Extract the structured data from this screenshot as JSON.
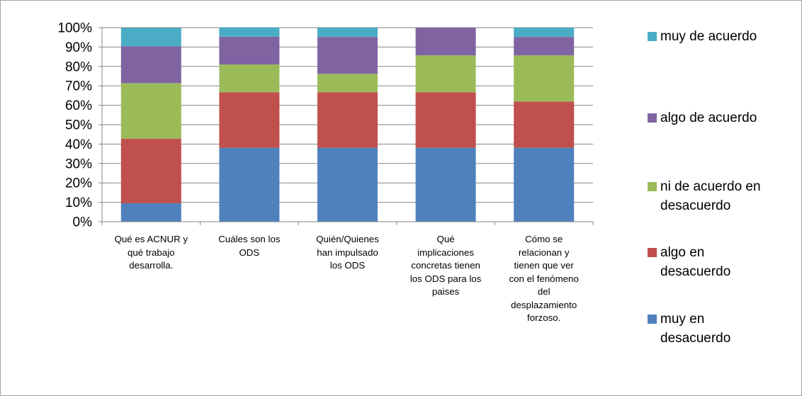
{
  "chart_data": {
    "type": "bar",
    "stacked": true,
    "percent_stacked": true,
    "categories": [
      "Qué es ACNUR y qué trabajo desarrolla.",
      "Cuáles son los ODS",
      "Quién/Quienes han impulsado los ODS",
      "Qué implicaciones concretas tienen los ODS para los paises",
      "Cómo se relacionan y tienen que ver con el fenómeno del desplazamiento forzoso."
    ],
    "series": [
      {
        "name": "muy en desacuerdo",
        "color": "#4f81bd",
        "values": [
          9.5,
          38.1,
          38.1,
          38.1,
          38.1
        ]
      },
      {
        "name": "algo en desacuerdo",
        "color": "#c0504d",
        "values": [
          33.3,
          28.6,
          28.6,
          28.6,
          23.8
        ]
      },
      {
        "name": "ni de acuerdo en desacuerdo",
        "color": "#9bbb59",
        "values": [
          28.6,
          14.3,
          9.5,
          19.0,
          23.8
        ]
      },
      {
        "name": "algo de acuerdo",
        "color": "#8064a2",
        "values": [
          19.0,
          14.3,
          19.0,
          14.3,
          9.5
        ]
      },
      {
        "name": "muy de acuerdo",
        "color": "#4bacc6",
        "values": [
          9.5,
          4.8,
          4.8,
          0,
          4.8
        ]
      }
    ],
    "yticks": [
      "0%",
      "10%",
      "20%",
      "30%",
      "40%",
      "50%",
      "60%",
      "70%",
      "80%",
      "90%",
      "100%"
    ],
    "ylim": [
      0,
      100
    ],
    "grid": true,
    "legend_position": "right",
    "legend_order": [
      "muy de acuerdo",
      "algo de acuerdo",
      "ni de acuerdo en desacuerdo",
      "algo en desacuerdo",
      "muy en desacuerdo"
    ],
    "legend_lines": [
      [
        "muy de acuerdo"
      ],
      [
        "algo de acuerdo"
      ],
      [
        "ni de acuerdo en",
        "desacuerdo"
      ],
      [
        "algo en",
        "desacuerdo"
      ],
      [
        "muy en",
        "desacuerdo"
      ]
    ],
    "category_lines": [
      [
        "Qué es ACNUR y",
        "qué trabajo",
        "desarrolla."
      ],
      [
        "Cuáles son los",
        "ODS"
      ],
      [
        "Quién/Quienes",
        "han impulsado",
        "los ODS"
      ],
      [
        "Qué",
        "implicaciones",
        "concretas tienen",
        "los ODS para los",
        "paises"
      ],
      [
        "Cómo se",
        "relacionan y",
        "tienen que ver",
        "con el fenómeno",
        "del",
        "desplazamiento",
        "forzoso."
      ]
    ]
  }
}
